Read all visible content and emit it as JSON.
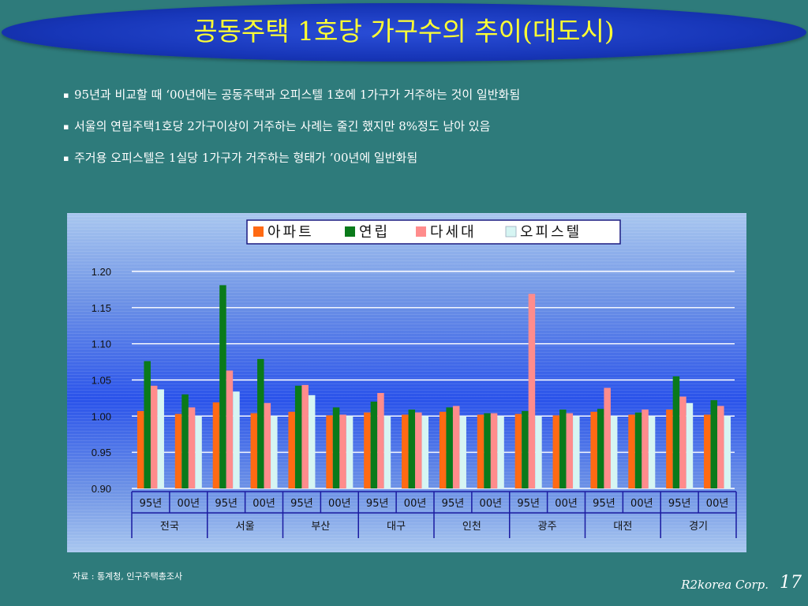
{
  "slide": {
    "title": "공동주택 1호당 가구수의 추이(대도시)",
    "bullets": [
      "95년과 비교할 때 ‘00년에는 공동주택과 오피스텔 1호에 1가구가 거주하는 것이 일반화됨",
      "서울의 연립주택1호당 2가구이상이 거주하는 사례는 줄긴 했지만 8%정도 남아 있음",
      "주거용 오피스텔은 1실당 1가구가 거주하는 형태가 ’00년에 일반화됨"
    ],
    "bullet_marker": "▪",
    "source": "자료 : 통계청, 인구주택총조사",
    "footer_brand": "R2korea Corp.",
    "page_number": "17"
  },
  "chart_data": {
    "type": "bar",
    "title": "",
    "xlabel": "",
    "ylabel": "",
    "ylim": [
      0.9,
      1.2
    ],
    "yticks": [
      "1.20",
      "1.15",
      "1.10",
      "1.05",
      "1.00",
      "0.95",
      "0.90"
    ],
    "grid": true,
    "legend_position": "top",
    "groups": [
      "전국",
      "서울",
      "부산",
      "대구",
      "인천",
      "광주",
      "대전",
      "경기"
    ],
    "subcategories": [
      "95년",
      "00년"
    ],
    "categories": [
      "전국 95년",
      "전국 00년",
      "서울 95년",
      "서울 00년",
      "부산 95년",
      "부산 00년",
      "대구 95년",
      "대구 00년",
      "인천 95년",
      "인천 00년",
      "광주 95년",
      "광주 00년",
      "대전 95년",
      "대전 00년",
      "경기 95년",
      "경기 00년"
    ],
    "series": [
      {
        "name": "아파트",
        "color": "#ff6a13",
        "values": [
          1.007,
          1.003,
          1.019,
          1.004,
          1.006,
          1.001,
          1.005,
          1.002,
          1.006,
          1.002,
          1.003,
          1.001,
          1.006,
          1.002,
          1.009,
          1.002
        ]
      },
      {
        "name": "연립",
        "color": "#0a7a1a",
        "values": [
          1.076,
          1.03,
          1.181,
          1.079,
          1.042,
          1.012,
          1.02,
          1.009,
          1.012,
          1.004,
          1.007,
          1.009,
          1.01,
          1.005,
          1.055,
          1.022
        ]
      },
      {
        "name": "다세대",
        "color": "#ff8c8c",
        "values": [
          1.042,
          1.012,
          1.063,
          1.018,
          1.043,
          1.002,
          1.032,
          1.005,
          1.014,
          1.004,
          1.169,
          1.004,
          1.039,
          1.009,
          1.027,
          1.014
        ]
      },
      {
        "name": "오피스텔",
        "color": "#d6f5f3",
        "values": [
          1.037,
          1.0,
          1.034,
          1.0,
          1.029,
          1.0,
          1.0,
          1.0,
          1.0,
          1.0,
          1.0,
          1.0,
          1.0,
          1.0,
          1.018,
          1.0
        ]
      }
    ]
  }
}
